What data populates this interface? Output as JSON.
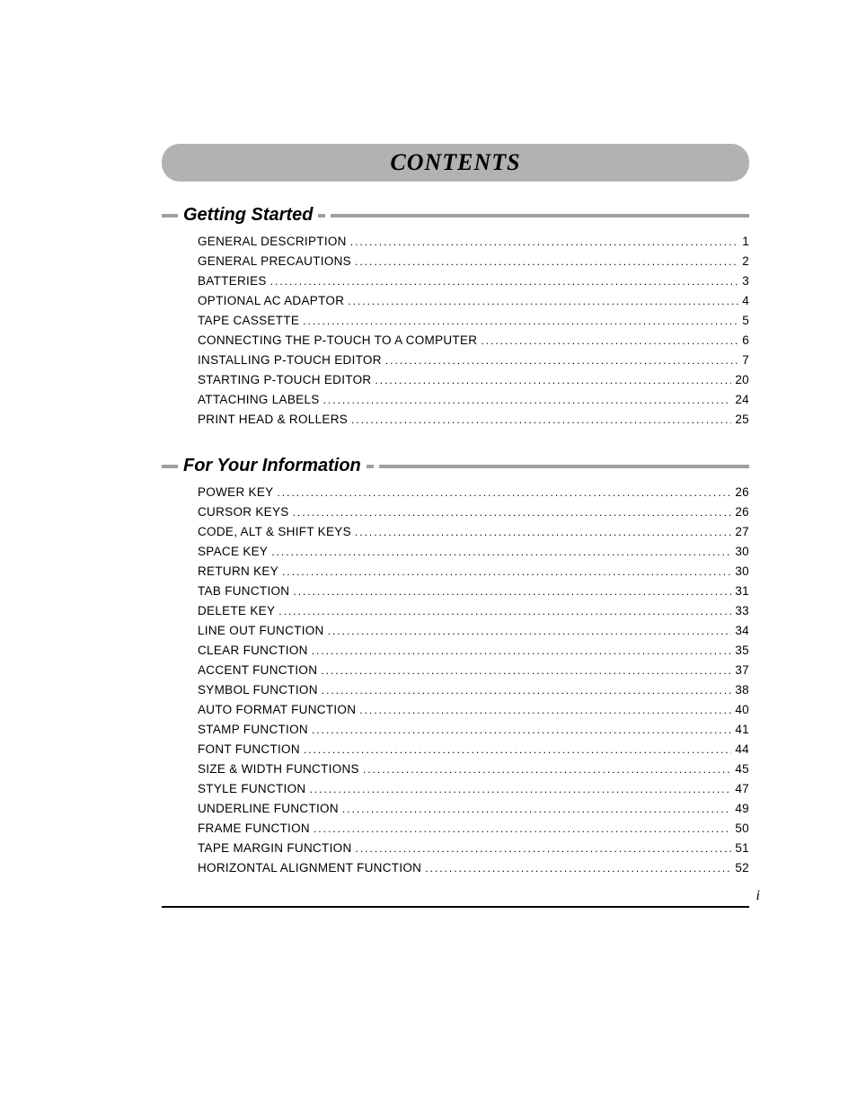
{
  "title": "CONTENTS",
  "page_number": "i",
  "sections": [
    {
      "heading": "Getting Started",
      "entries": [
        {
          "label": "GENERAL DESCRIPTION",
          "page": "1"
        },
        {
          "label": "GENERAL PRECAUTIONS",
          "page": "2"
        },
        {
          "label": "BATTERIES",
          "page": "3"
        },
        {
          "label": "OPTIONAL AC ADAPTOR",
          "page": "4"
        },
        {
          "label": "TAPE CASSETTE",
          "page": "5"
        },
        {
          "label": "CONNECTING THE P-TOUCH TO A COMPUTER",
          "page": "6"
        },
        {
          "label": "INSTALLING P-TOUCH EDITOR",
          "page": "7"
        },
        {
          "label": "STARTING P-TOUCH EDITOR",
          "page": "20"
        },
        {
          "label": "ATTACHING LABELS",
          "page": "24"
        },
        {
          "label": "PRINT HEAD & ROLLERS",
          "page": "25"
        }
      ]
    },
    {
      "heading": "For Your Information",
      "entries": [
        {
          "label": "POWER KEY",
          "page": "26"
        },
        {
          "label": "CURSOR KEYS",
          "page": "26"
        },
        {
          "label": "CODE, ALT & SHIFT KEYS",
          "page": "27"
        },
        {
          "label": "SPACE KEY",
          "page": "30"
        },
        {
          "label": "RETURN KEY",
          "page": "30"
        },
        {
          "label": "TAB FUNCTION",
          "page": "31"
        },
        {
          "label": "DELETE KEY",
          "page": "33"
        },
        {
          "label": "LINE OUT FUNCTION",
          "page": "34"
        },
        {
          "label": "CLEAR FUNCTION",
          "page": "35"
        },
        {
          "label": "ACCENT FUNCTION",
          "page": "37"
        },
        {
          "label": "SYMBOL FUNCTION",
          "page": "38"
        },
        {
          "label": "AUTO FORMAT FUNCTION",
          "page": "40"
        },
        {
          "label": "STAMP FUNCTION",
          "page": "41"
        },
        {
          "label": "FONT FUNCTION",
          "page": "44"
        },
        {
          "label": "SIZE & WIDTH FUNCTIONS",
          "page": "45"
        },
        {
          "label": "STYLE FUNCTION",
          "page": "47"
        },
        {
          "label": "UNDERLINE FUNCTION",
          "page": "49"
        },
        {
          "label": "FRAME FUNCTION",
          "page": "50"
        },
        {
          "label": "TAPE MARGIN FUNCTION",
          "page": "51"
        },
        {
          "label": "HORIZONTAL ALIGNMENT FUNCTION",
          "page": "52"
        }
      ]
    }
  ],
  "style": {
    "banner_bg": "#b2b2b2",
    "bar_color": "#9f9f9f",
    "title_fontsize": 26,
    "section_title_fontsize": 20,
    "entry_fontsize": 13.5
  }
}
